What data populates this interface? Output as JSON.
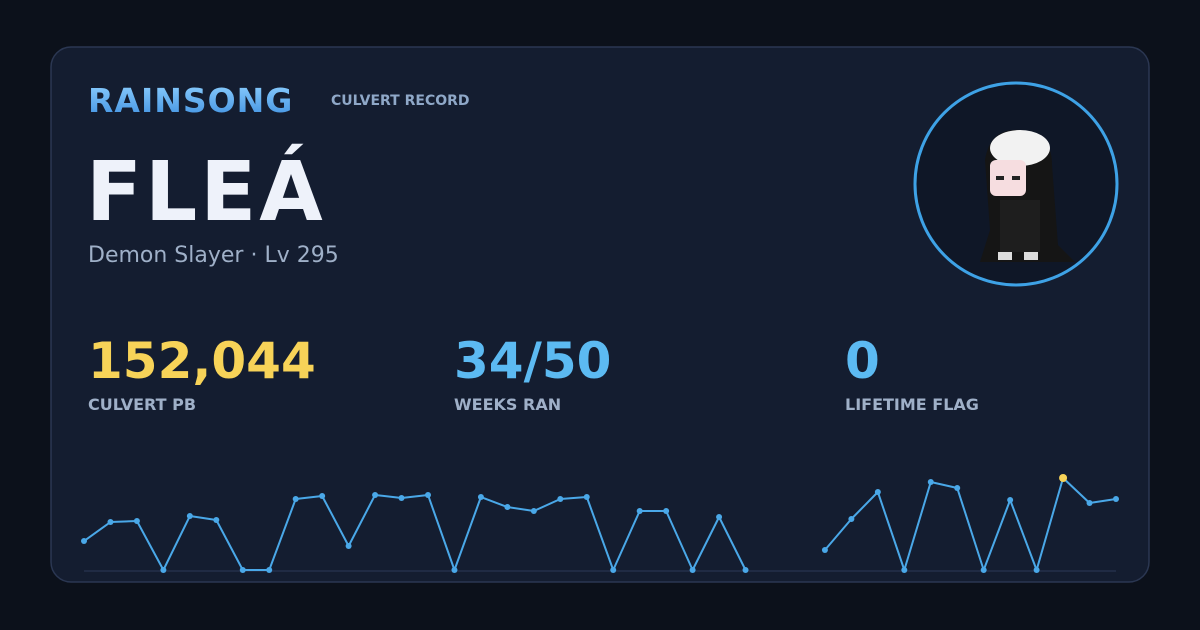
{
  "header": {
    "brand": "RAINSONG",
    "subtitle": "CULVERT RECORD"
  },
  "player": {
    "name": "FLEÁ",
    "detail": "Demon Slayer · Lv 295"
  },
  "stats": [
    {
      "value": "152,044",
      "label": "CULVERT PB",
      "color": "#f7d358"
    },
    {
      "value": "34/50",
      "label": "WEEKS RAN",
      "color": "#5cbaf2"
    },
    {
      "value": "0",
      "label": "LIFETIME FLAG",
      "color": "#5cbaf2"
    }
  ],
  "chart_data": {
    "type": "line",
    "color": "#4aa8e8",
    "highlight_color": "#f7d358",
    "ylim": [
      0,
      152044
    ],
    "values": [
      47900,
      79300,
      81000,
      0,
      89200,
      82600,
      0,
      0,
      117300,
      122300,
      39700,
      124000,
      119000,
      124000,
      0,
      120600,
      104100,
      97500,
      117300,
      120600,
      0,
      97500,
      97500,
      0,
      87600,
      0,
      null,
      null,
      33100,
      84300,
      128900,
      0,
      145400,
      135500,
      0,
      115700,
      0,
      152044,
      110700,
      117300
    ]
  }
}
